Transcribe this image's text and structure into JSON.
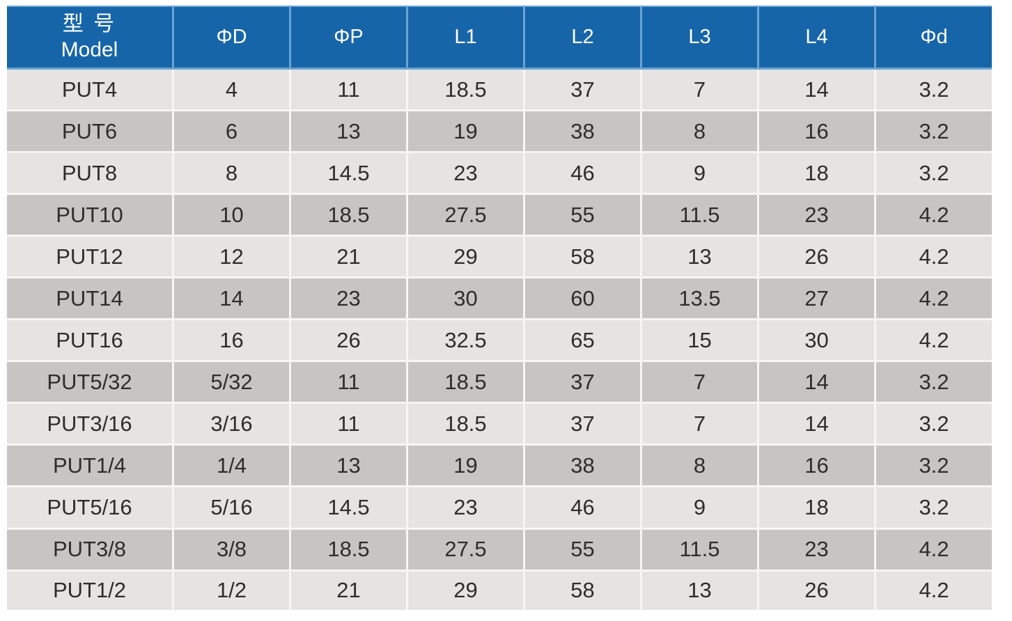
{
  "colors": {
    "header_bg": "#1765a9",
    "header_divider": "#6aa5d3",
    "row_light": "#e5e4e2",
    "row_dark": "#c6c5c3",
    "grid": "#f7f6f4",
    "text": "#2e2d2b",
    "header_text": "#ffffff"
  },
  "table": {
    "model_header": {
      "zh": "型 号",
      "en": "Model"
    },
    "columns": [
      "ΦD",
      "ΦP",
      "L1",
      "L2",
      "L3",
      "L4",
      "Φd"
    ],
    "rows": [
      {
        "model": "PUT4",
        "values": [
          "4",
          "11",
          "18.5",
          "37",
          "7",
          "14",
          "3.2"
        ]
      },
      {
        "model": "PUT6",
        "values": [
          "6",
          "13",
          "19",
          "38",
          "8",
          "16",
          "3.2"
        ]
      },
      {
        "model": "PUT8",
        "values": [
          "8",
          "14.5",
          "23",
          "46",
          "9",
          "18",
          "3.2"
        ]
      },
      {
        "model": "PUT10",
        "values": [
          "10",
          "18.5",
          "27.5",
          "55",
          "11.5",
          "23",
          "4.2"
        ]
      },
      {
        "model": "PUT12",
        "values": [
          "12",
          "21",
          "29",
          "58",
          "13",
          "26",
          "4.2"
        ]
      },
      {
        "model": "PUT14",
        "values": [
          "14",
          "23",
          "30",
          "60",
          "13.5",
          "27",
          "4.2"
        ]
      },
      {
        "model": "PUT16",
        "values": [
          "16",
          "26",
          "32.5",
          "65",
          "15",
          "30",
          "4.2"
        ]
      },
      {
        "model": "PUT5/32",
        "values": [
          "5/32",
          "11",
          "18.5",
          "37",
          "7",
          "14",
          "3.2"
        ]
      },
      {
        "model": "PUT3/16",
        "values": [
          "3/16",
          "11",
          "18.5",
          "37",
          "7",
          "14",
          "3.2"
        ]
      },
      {
        "model": "PUT1/4",
        "values": [
          "1/4",
          "13",
          "19",
          "38",
          "8",
          "16",
          "3.2"
        ]
      },
      {
        "model": "PUT5/16",
        "values": [
          "5/16",
          "14.5",
          "23",
          "46",
          "9",
          "18",
          "3.2"
        ]
      },
      {
        "model": "PUT3/8",
        "values": [
          "3/8",
          "18.5",
          "27.5",
          "55",
          "11.5",
          "23",
          "4.2"
        ]
      },
      {
        "model": "PUT1/2",
        "values": [
          "1/2",
          "21",
          "29",
          "58",
          "13",
          "26",
          "4.2"
        ]
      }
    ]
  }
}
